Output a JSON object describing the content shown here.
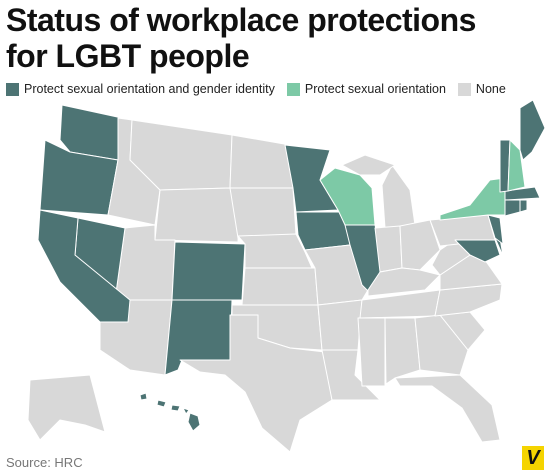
{
  "title": [
    "Status of workplace protections",
    "for LGBT people"
  ],
  "legend": [
    {
      "label": "Protect sexual orientation and gender identity",
      "color": "#4d7474"
    },
    {
      "label": "Protect sexual orientation",
      "color": "#7dc9a6"
    },
    {
      "label": "None",
      "color": "#d8d8d8"
    }
  ],
  "source": "Source: HRC",
  "logo": "V"
}
